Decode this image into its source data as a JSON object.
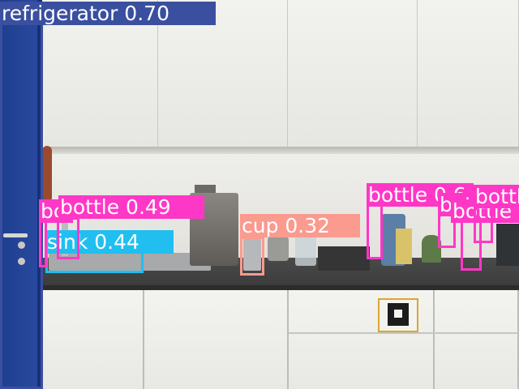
{
  "colors": {
    "refrigerator": "#3a4f9f",
    "bottle": "#ff37c7",
    "sink": "#20bff0",
    "cup": "#fb9a8e"
  },
  "detections": [
    {
      "id": "refrigerator",
      "label": "refrigerator 0.70"
    },
    {
      "id": "sink",
      "label": "sink 0.44"
    },
    {
      "id": "bottle-1",
      "label": "bottle 0.49"
    },
    {
      "id": "bottle-2",
      "label": "bottle 0.49"
    },
    {
      "id": "cup",
      "label": "cup 0.32"
    },
    {
      "id": "bottle-3",
      "label": "bottle 0.6"
    },
    {
      "id": "bottle-4",
      "label": "bottle"
    },
    {
      "id": "bottle-5",
      "label": "bottle"
    },
    {
      "id": "bottle-6",
      "label": "bottle"
    }
  ]
}
